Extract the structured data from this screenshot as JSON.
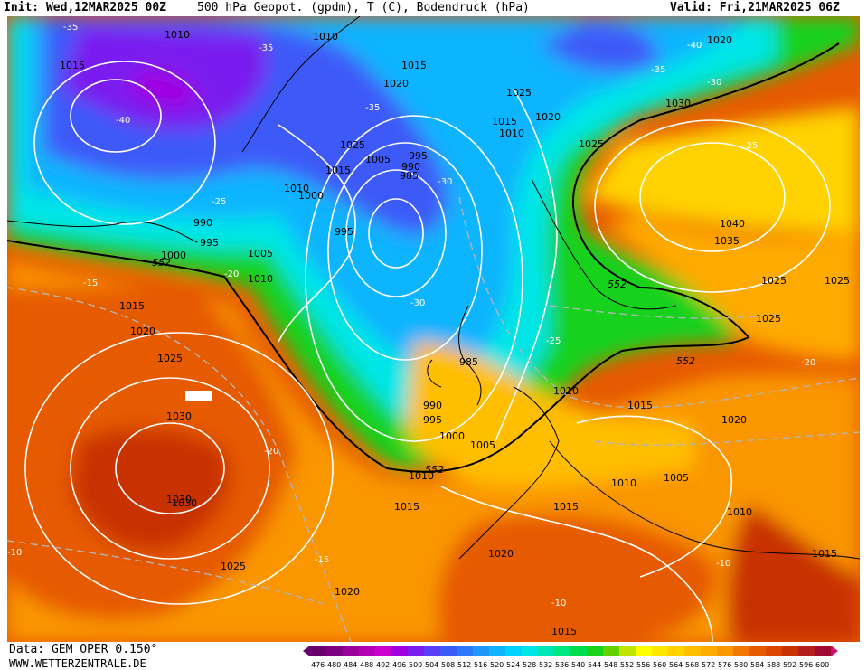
{
  "header": {
    "init": "Init: Wed,12MAR2025 00Z",
    "title": "500 hPa Geopot. (gpdm), T (C), Bodendruck (hPa)",
    "valid": "Valid: Fri,21MAR2025 06Z"
  },
  "footer": {
    "data_line": "Data: GEM OPER 0.150°",
    "site": "WWW.WETTERZENTRALE.DE"
  },
  "legend": {
    "values": [
      "476",
      "480",
      "484",
      "488",
      "492",
      "496",
      "500",
      "504",
      "508",
      "512",
      "516",
      "520",
      "524",
      "528",
      "532",
      "536",
      "540",
      "544",
      "548",
      "552",
      "556",
      "560",
      "564",
      "568",
      "572",
      "576",
      "580",
      "584",
      "588",
      "592",
      "596",
      "600"
    ],
    "colors": [
      "#6a006a",
      "#7e007e",
      "#9a009a",
      "#b400b4",
      "#cc00cc",
      "#a000e0",
      "#7a1ef0",
      "#5a3cf6",
      "#3c5af8",
      "#2c78fa",
      "#1e96fc",
      "#10b4fe",
      "#00d2ff",
      "#00e6e6",
      "#00e6b4",
      "#00e682",
      "#00dc50",
      "#18d21e",
      "#64d200",
      "#bee600",
      "#ffff00",
      "#ffe600",
      "#ffd200",
      "#ffbe00",
      "#ffaa00",
      "#fa9600",
      "#f07800",
      "#e65a00",
      "#dc4600",
      "#c83200",
      "#b41e1e",
      "#a00a32"
    ]
  },
  "map": {
    "colors": {
      "deep_low": "#a000e0",
      "low": "#3c5af8",
      "mid_blue": "#10b4fe",
      "cyan": "#00e6e6",
      "green": "#18d21e",
      "yellow": "#ffd200",
      "orange": "#fa9600",
      "red": "#e65a00",
      "deep_red": "#c83200",
      "coast": "#000000",
      "isobar": "#ffffff",
      "isotherm": "#b4b4b4"
    },
    "isobar_labels": [
      "1005",
      "1010",
      "1015",
      "1020",
      "1025",
      "1030",
      "1035",
      "1040",
      "1000",
      "995",
      "990",
      "985"
    ],
    "low_centers": [
      "985",
      "985",
      "1000"
    ],
    "high_centers": [
      "1040",
      "1030"
    ],
    "geopotential_labels": [
      "552",
      "552",
      "552",
      "552"
    ],
    "temp_labels": [
      "-35",
      "-35",
      "-40",
      "-35",
      "-30",
      "-25",
      "-20",
      "-15",
      "-10",
      "-30",
      "-25",
      "-20",
      "-15",
      "-10"
    ]
  }
}
